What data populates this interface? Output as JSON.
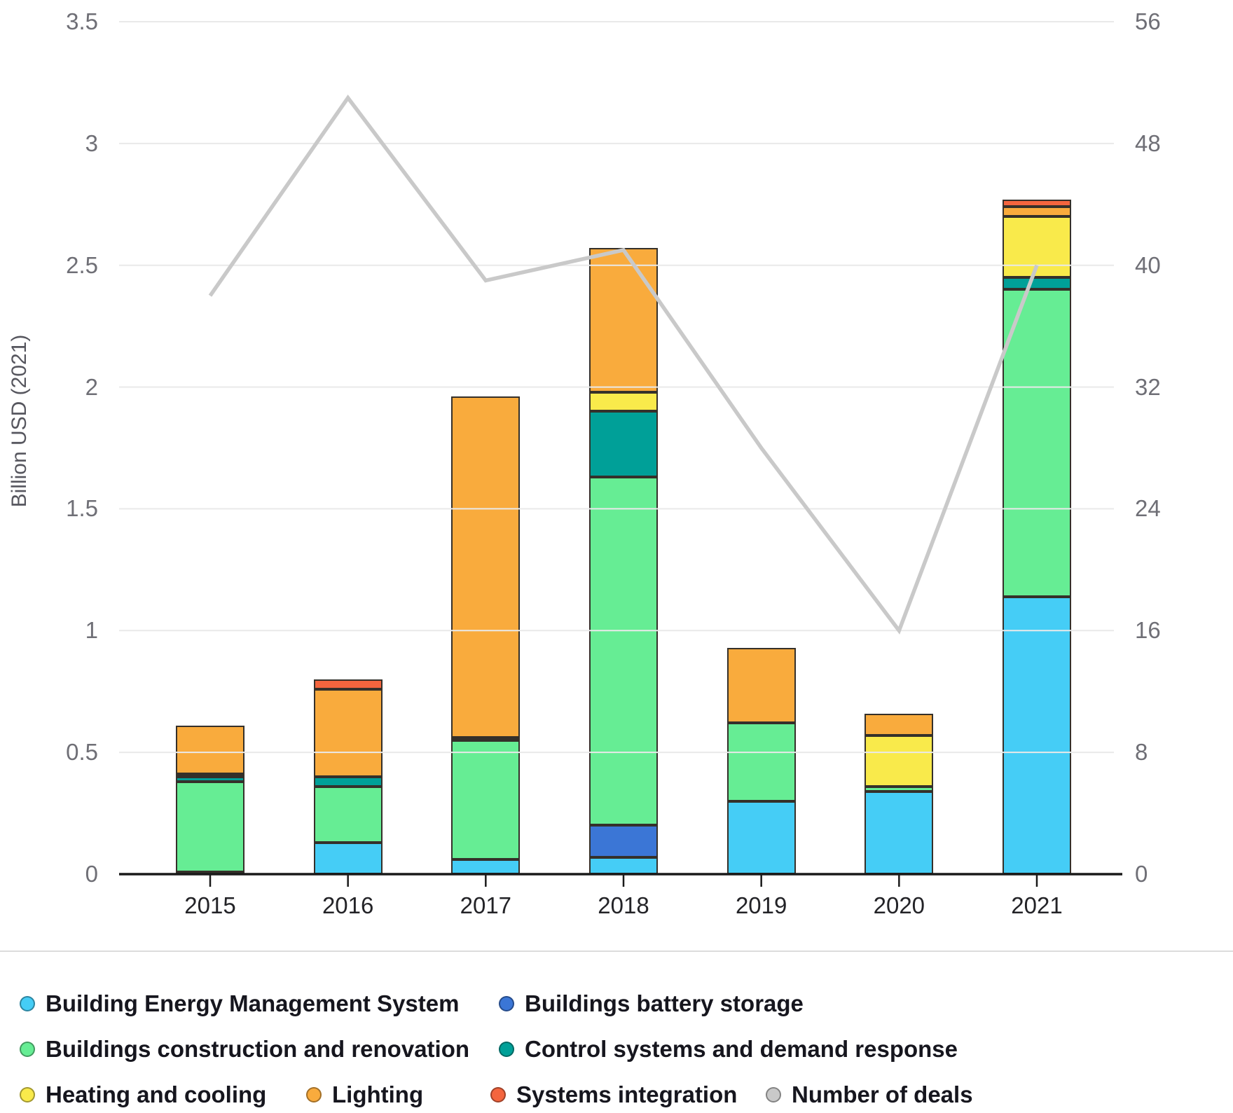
{
  "chart_data": {
    "type": "combo-stacked-bar-line",
    "title": "",
    "ylabel_left": "Billion USD (2021)",
    "left_axis": {
      "min": 0,
      "max": 3.5,
      "step": 0.5,
      "tick_labels": [
        "0",
        "0.5",
        "1",
        "1.5",
        "2",
        "2.5",
        "3",
        "3.5"
      ]
    },
    "right_axis": {
      "min": 0,
      "max": 56,
      "step": 8,
      "tick_labels": [
        "0",
        "8",
        "16",
        "24",
        "32",
        "40",
        "48",
        "56"
      ]
    },
    "categories": [
      "2015",
      "2016",
      "2017",
      "2018",
      "2019",
      "2020",
      "2021"
    ],
    "series": [
      {
        "name": "Building Energy Management System",
        "color": "#45cdf6",
        "values": [
          0.01,
          0.13,
          0.06,
          0.07,
          0.3,
          0.34,
          1.14
        ]
      },
      {
        "name": "Buildings battery storage",
        "color": "#3b76d6",
        "values": [
          0,
          0,
          0,
          0.13,
          0,
          0,
          0
        ]
      },
      {
        "name": "Buildings construction and renovation",
        "color": "#66ed94",
        "values": [
          0.37,
          0.23,
          0.49,
          1.43,
          0.32,
          0.02,
          1.26
        ]
      },
      {
        "name": "Control systems and demand response",
        "color": "#00a098",
        "values": [
          0.02,
          0.04,
          0,
          0.27,
          0,
          0,
          0.05
        ]
      },
      {
        "name": "Heating and cooling",
        "color": "#f9ea4b",
        "values": [
          0.01,
          0,
          0.01,
          0.08,
          0,
          0.21,
          0.25
        ]
      },
      {
        "name": "Lighting",
        "color": "#f9ab3d",
        "values": [
          0.2,
          0.36,
          1.4,
          0.59,
          0.31,
          0.09,
          0.04
        ]
      },
      {
        "name": "Systems integration",
        "color": "#f4653e",
        "values": [
          0,
          0.04,
          0,
          0,
          0,
          0,
          0.03
        ]
      }
    ],
    "line_series": {
      "name": "Number of deals",
      "color": "#c9c9c9",
      "axis": "right",
      "values": [
        38,
        51,
        39,
        41,
        28,
        16,
        40
      ]
    },
    "legend": [
      {
        "label": "Building Energy Management System",
        "color": "#45cdf6"
      },
      {
        "label": "Buildings battery storage",
        "color": "#3b76d6"
      },
      {
        "label": "Buildings construction and renovation",
        "color": "#66ed94"
      },
      {
        "label": "Control systems and demand response",
        "color": "#00a098"
      },
      {
        "label": "Heating and cooling",
        "color": "#f9ea4b"
      },
      {
        "label": "Lighting",
        "color": "#f9ab3d"
      },
      {
        "label": "Systems integration",
        "color": "#f4653e"
      },
      {
        "label": "Number of deals",
        "color": "#c9c9c9"
      }
    ],
    "grid": true,
    "legend_position": "bottom"
  },
  "colors": {
    "grid_line": "#e9e9e9",
    "axis_line": "#1a1a1a",
    "axis_text": "#6f6f76",
    "year_text": "#232327",
    "legend_text": "#16161e",
    "deals_line": "#c9c9c9",
    "background": "#ffffff"
  }
}
